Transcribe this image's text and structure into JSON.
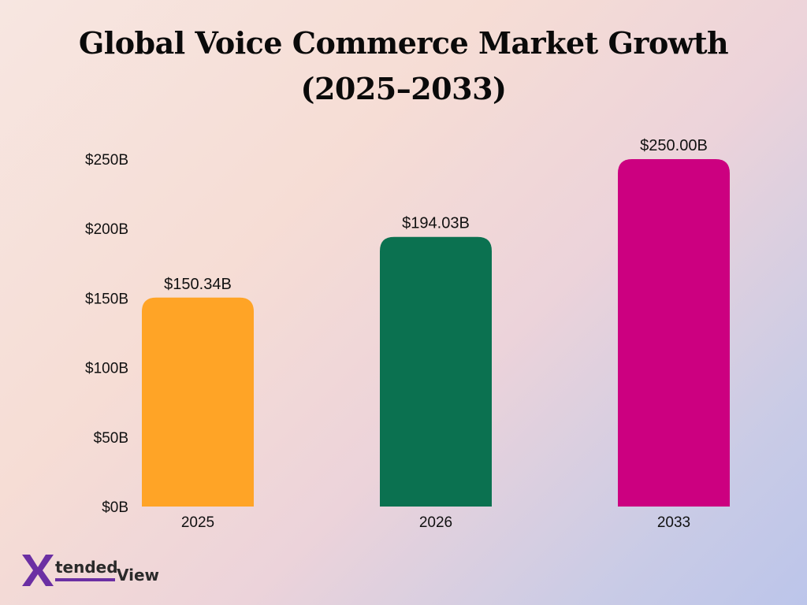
{
  "title_line1": "Global Voice Commerce Market Growth",
  "title_line2": "(2025–2033)",
  "chart_data": {
    "type": "bar",
    "categories": [
      "2025",
      "2026",
      "2033"
    ],
    "values": [
      150.34,
      194.03,
      250.0
    ],
    "data_labels": [
      "$150.34B",
      "$194.03B",
      "$250.00B"
    ],
    "colors": [
      "#ffa426",
      "#0b7150",
      "#cc0080"
    ],
    "ylim": [
      0,
      250
    ],
    "yticks": [
      0,
      50,
      100,
      150,
      200,
      250
    ],
    "ytick_labels": [
      "$0B",
      "$50B",
      "$100B",
      "$150B",
      "$200B",
      "$250B"
    ],
    "grid": false,
    "legend": false
  },
  "logo": {
    "mark": "X",
    "word1": "tended",
    "word2": "View",
    "mark_color": "#6b2fa3"
  }
}
